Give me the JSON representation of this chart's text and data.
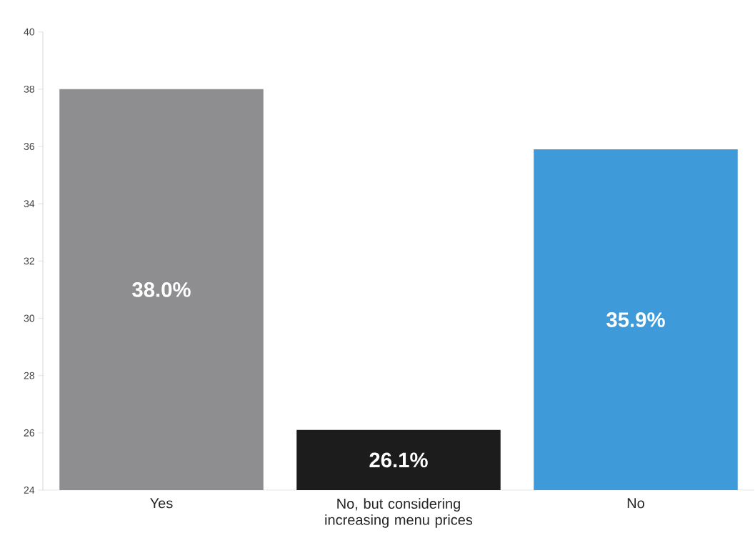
{
  "chart_data": {
    "type": "bar",
    "categories": [
      "Yes",
      "No, but considering increasing menu prices",
      "No"
    ],
    "values": [
      38.0,
      26.1,
      35.9
    ],
    "colors": [
      "#8e8e90",
      "#1c1c1c",
      "#3e9ad8"
    ],
    "value_labels": [
      "38.0%",
      "26.1%",
      "35.9%"
    ],
    "ylim": [
      24,
      40
    ],
    "yticks": [
      24,
      26,
      28,
      30,
      32,
      34,
      36,
      38,
      40
    ],
    "grid": false
  }
}
